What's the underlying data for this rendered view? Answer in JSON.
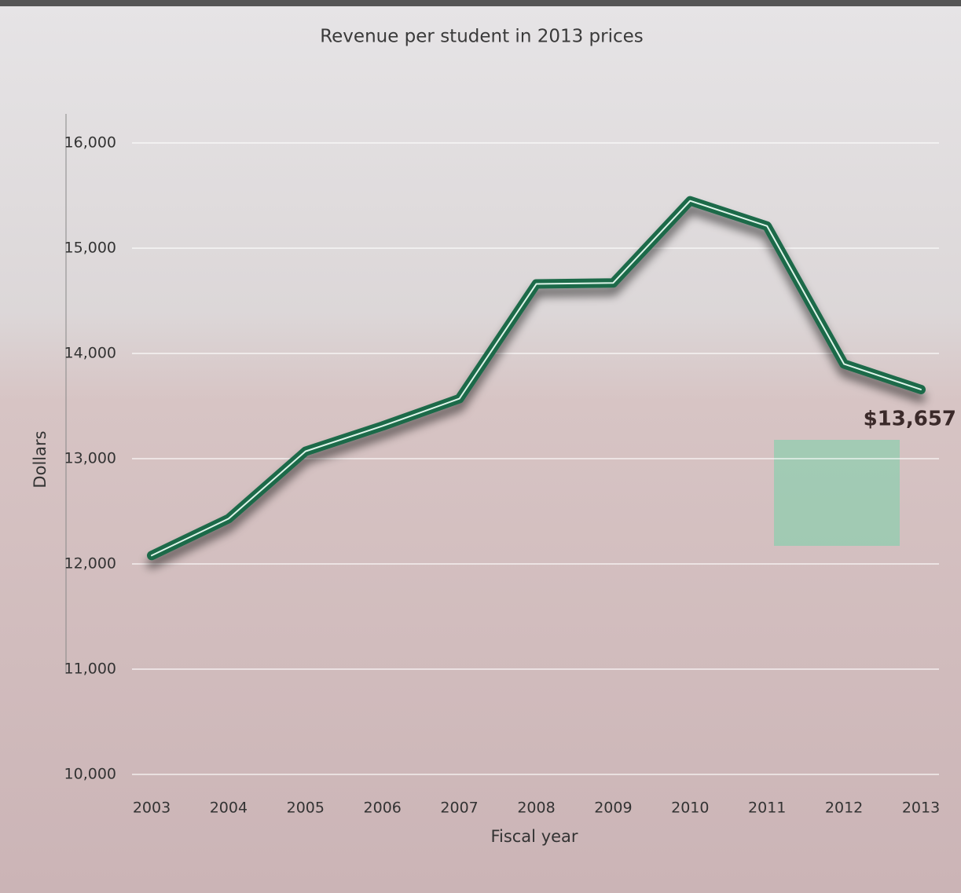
{
  "chart_data": {
    "type": "line",
    "title": "Revenue per student in 2013 prices",
    "x_label": "Fiscal year",
    "y_label": "Dollars",
    "categories": [
      "2003",
      "2004",
      "2005",
      "2006",
      "2007",
      "2008",
      "2009",
      "2010",
      "2011",
      "2012",
      "2013"
    ],
    "values": [
      12080,
      12430,
      13070,
      13310,
      13570,
      14660,
      14670,
      15450,
      15210,
      13900,
      13657
    ],
    "value_labels": [
      null,
      null,
      null,
      null,
      null,
      null,
      null,
      null,
      null,
      null,
      "$13,657"
    ],
    "color": "#1d6a4a",
    "ylim": [
      10000,
      16000
    ],
    "yticks": [
      {
        "value": 10000,
        "label": "10,000"
      },
      {
        "value": 11000,
        "label": "11,000"
      },
      {
        "value": 12000,
        "label": "12,000"
      },
      {
        "value": 13000,
        "label": "13,000"
      },
      {
        "value": 14000,
        "label": "14,000"
      },
      {
        "value": 15000,
        "label": "15,000"
      },
      {
        "value": 16000,
        "label": "16,000"
      }
    ],
    "grid": true
  }
}
